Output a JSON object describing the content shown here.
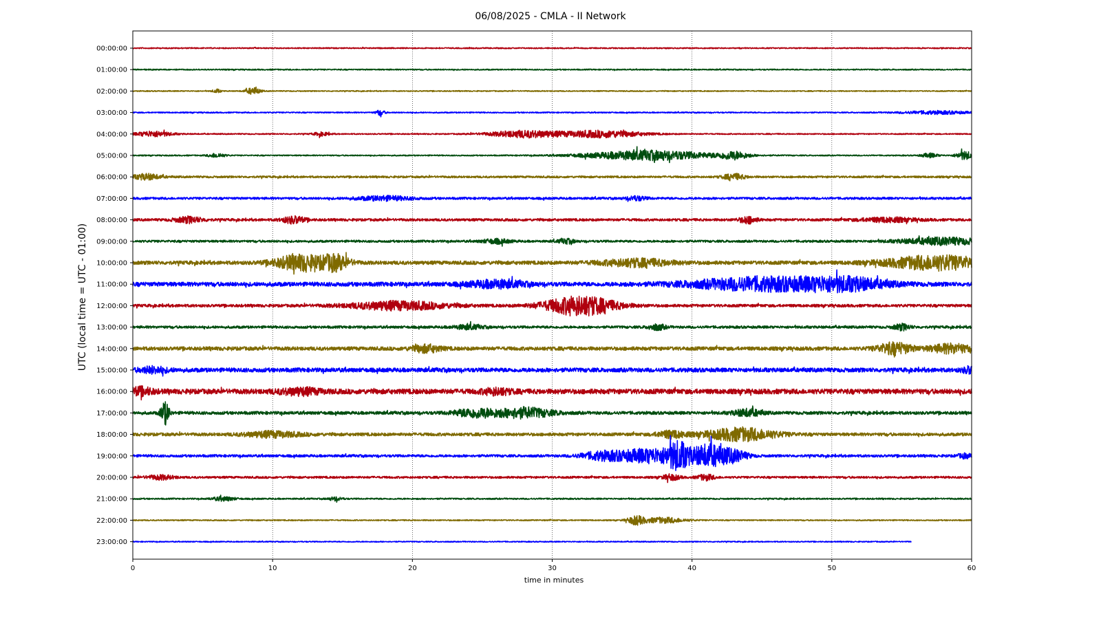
{
  "chart_data": {
    "type": "line",
    "title": "06/08/2025 - CMLA - II Network",
    "xlabel": "time in minutes",
    "ylabel": "UTC (local time = UTC - 01:00)",
    "xlim": [
      0,
      60
    ],
    "xticks": [
      0,
      10,
      20,
      30,
      40,
      50,
      60
    ],
    "xtick_labels": [
      "0",
      "10",
      "20",
      "30",
      "40",
      "50",
      "60"
    ],
    "grid_x": true,
    "colors": [
      "#b0000e",
      "#004d0f",
      "#7f6a00",
      "#0000ff"
    ],
    "rows": [
      {
        "label": "00:00:00",
        "base": 0.8,
        "events": []
      },
      {
        "label": "01:00:00",
        "base": 0.8,
        "events": []
      },
      {
        "label": "02:00:00",
        "base": 0.7,
        "events": [
          {
            "t": 6.0,
            "w": 0.3,
            "a": 2.5
          },
          {
            "t": 8.6,
            "w": 0.5,
            "a": 5
          }
        ]
      },
      {
        "label": "03:00:00",
        "base": 0.8,
        "events": [
          {
            "t": 17.7,
            "w": 0.3,
            "a": 4
          },
          {
            "t": 57.5,
            "w": 2.5,
            "a": 2.2
          }
        ]
      },
      {
        "label": "04:00:00",
        "base": 0.8,
        "events": [
          {
            "t": 1.5,
            "w": 1.3,
            "a": 4
          },
          {
            "t": 13.5,
            "w": 0.6,
            "a": 2.5
          },
          {
            "t": 28,
            "w": 2.5,
            "a": 5
          },
          {
            "t": 33.5,
            "w": 3,
            "a": 5
          }
        ]
      },
      {
        "label": "05:00:00",
        "base": 0.8,
        "events": [
          {
            "t": 6,
            "w": 0.6,
            "a": 3
          },
          {
            "t": 37,
            "w": 4.5,
            "a": 7
          },
          {
            "t": 43,
            "w": 1,
            "a": 5
          },
          {
            "t": 57,
            "w": 0.6,
            "a": 3
          },
          {
            "t": 59.5,
            "w": 0.6,
            "a": 6
          }
        ]
      },
      {
        "label": "06:00:00",
        "base": 1.4,
        "events": [
          {
            "t": 1,
            "w": 1,
            "a": 4
          },
          {
            "t": 43,
            "w": 0.8,
            "a": 4
          }
        ]
      },
      {
        "label": "07:00:00",
        "base": 1.6,
        "events": [
          {
            "t": 18,
            "w": 2,
            "a": 3
          },
          {
            "t": 36,
            "w": 0.7,
            "a": 3
          }
        ]
      },
      {
        "label": "08:00:00",
        "base": 1.8,
        "events": [
          {
            "t": 4,
            "w": 1,
            "a": 4
          },
          {
            "t": 11.5,
            "w": 0.8,
            "a": 5
          },
          {
            "t": 44,
            "w": 0.6,
            "a": 5
          },
          {
            "t": 54,
            "w": 2,
            "a": 3
          }
        ]
      },
      {
        "label": "09:00:00",
        "base": 1.6,
        "events": [
          {
            "t": 26,
            "w": 1,
            "a": 3
          },
          {
            "t": 31,
            "w": 0.6,
            "a": 3
          },
          {
            "t": 58,
            "w": 3,
            "a": 5
          }
        ]
      },
      {
        "label": "10:00:00",
        "base": 2.6,
        "events": [
          {
            "t": 12,
            "w": 1.8,
            "a": 11
          },
          {
            "t": 14.5,
            "w": 1,
            "a": 10
          },
          {
            "t": 36,
            "w": 2.5,
            "a": 5
          },
          {
            "t": 57.5,
            "w": 3.5,
            "a": 10
          }
        ]
      },
      {
        "label": "11:00:00",
        "base": 3.0,
        "events": [
          {
            "t": 26,
            "w": 2,
            "a": 5
          },
          {
            "t": 45,
            "w": 5,
            "a": 9
          },
          {
            "t": 51,
            "w": 3,
            "a": 8
          }
        ]
      },
      {
        "label": "12:00:00",
        "base": 2.0,
        "events": [
          {
            "t": 19,
            "w": 3.5,
            "a": 6
          },
          {
            "t": 32,
            "w": 2.5,
            "a": 14
          }
        ]
      },
      {
        "label": "13:00:00",
        "base": 1.8,
        "events": [
          {
            "t": 24,
            "w": 1,
            "a": 3
          },
          {
            "t": 37.5,
            "w": 0.6,
            "a": 4
          },
          {
            "t": 55,
            "w": 0.6,
            "a": 4
          }
        ]
      },
      {
        "label": "14:00:00",
        "base": 2.6,
        "events": [
          {
            "t": 21,
            "w": 1,
            "a": 5
          },
          {
            "t": 54.5,
            "w": 1.2,
            "a": 8
          },
          {
            "t": 58.5,
            "w": 1.5,
            "a": 6
          }
        ]
      },
      {
        "label": "15:00:00",
        "base": 3.0,
        "events": [
          {
            "t": 1.5,
            "w": 1,
            "a": 4
          },
          {
            "t": 60,
            "w": 0.6,
            "a": 5
          }
        ]
      },
      {
        "label": "16:00:00",
        "base": 3.6,
        "events": [
          {
            "t": 0.6,
            "w": 0.8,
            "a": 5
          },
          {
            "t": 12,
            "w": 1.5,
            "a": 4
          },
          {
            "t": 26,
            "w": 1,
            "a": 4
          }
        ]
      },
      {
        "label": "17:00:00",
        "base": 2.2,
        "events": [
          {
            "t": 2.3,
            "w": 0.3,
            "a": 16
          },
          {
            "t": 24.5,
            "w": 1.5,
            "a": 6
          },
          {
            "t": 28,
            "w": 2,
            "a": 7
          },
          {
            "t": 44,
            "w": 1,
            "a": 5
          }
        ]
      },
      {
        "label": "18:00:00",
        "base": 2.2,
        "events": [
          {
            "t": 10,
            "w": 2,
            "a": 4
          },
          {
            "t": 38.5,
            "w": 1,
            "a": 5
          },
          {
            "t": 43.5,
            "w": 2.5,
            "a": 9
          }
        ]
      },
      {
        "label": "19:00:00",
        "base": 1.8,
        "events": [
          {
            "t": 33.5,
            "w": 1.5,
            "a": 5
          },
          {
            "t": 37,
            "w": 2.5,
            "a": 10
          },
          {
            "t": 39,
            "w": 0.8,
            "a": 16
          },
          {
            "t": 41.2,
            "w": 1.2,
            "a": 16
          },
          {
            "t": 43,
            "w": 1,
            "a": 8
          },
          {
            "t": 59.5,
            "w": 0.5,
            "a": 3
          }
        ]
      },
      {
        "label": "20:00:00",
        "base": 1.5,
        "events": [
          {
            "t": 2,
            "w": 1,
            "a": 3
          },
          {
            "t": 38.5,
            "w": 0.6,
            "a": 4
          },
          {
            "t": 41,
            "w": 0.6,
            "a": 4
          }
        ]
      },
      {
        "label": "21:00:00",
        "base": 1.0,
        "events": [
          {
            "t": 6.5,
            "w": 0.8,
            "a": 3
          },
          {
            "t": 14.5,
            "w": 0.5,
            "a": 2.5
          }
        ]
      },
      {
        "label": "22:00:00",
        "base": 0.8,
        "events": [
          {
            "t": 36,
            "w": 0.6,
            "a": 6
          },
          {
            "t": 38,
            "w": 1.5,
            "a": 4
          }
        ]
      },
      {
        "label": "23:00:00",
        "base": 0.7,
        "events": [],
        "end": 55.7
      }
    ]
  }
}
